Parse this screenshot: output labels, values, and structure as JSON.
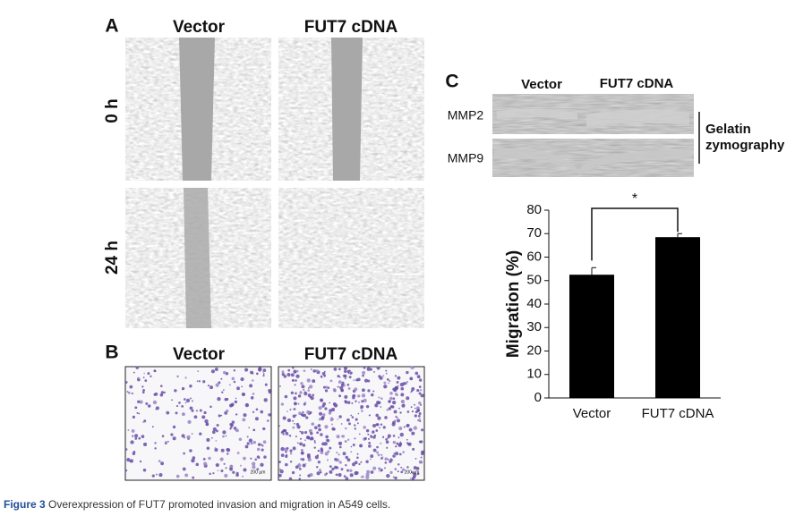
{
  "panel_a": {
    "label": "A",
    "columns": [
      "Vector",
      "FUT7 cDNA"
    ],
    "rows": [
      "0 h",
      "24 h"
    ]
  },
  "panel_b": {
    "label": "B",
    "columns": [
      "Vector",
      "FUT7 cDNA"
    ],
    "scale_bar": "200 µm"
  },
  "panel_c": {
    "label": "C",
    "gel_columns": [
      "Vector",
      "FUT7 cDNA"
    ],
    "gel_rows": [
      "MMP2",
      "MMP9"
    ],
    "gel_note": [
      "Gelatin",
      "zymography"
    ]
  },
  "chart_data": {
    "type": "bar",
    "ylabel": "Migration (%)",
    "categories": [
      "Vector",
      "FUT7 cDNA"
    ],
    "values": [
      52.5,
      68.5
    ],
    "errors": [
      3,
      1.5
    ],
    "color": "#000000",
    "ylim": [
      0,
      80
    ],
    "yticks": [
      0,
      10,
      20,
      30,
      40,
      50,
      60,
      70,
      80
    ],
    "annotation": "*"
  },
  "caption": {
    "label": "Figure 3",
    "text": "Overexpression of FUT7 promoted invasion and migration in A549 cells."
  }
}
